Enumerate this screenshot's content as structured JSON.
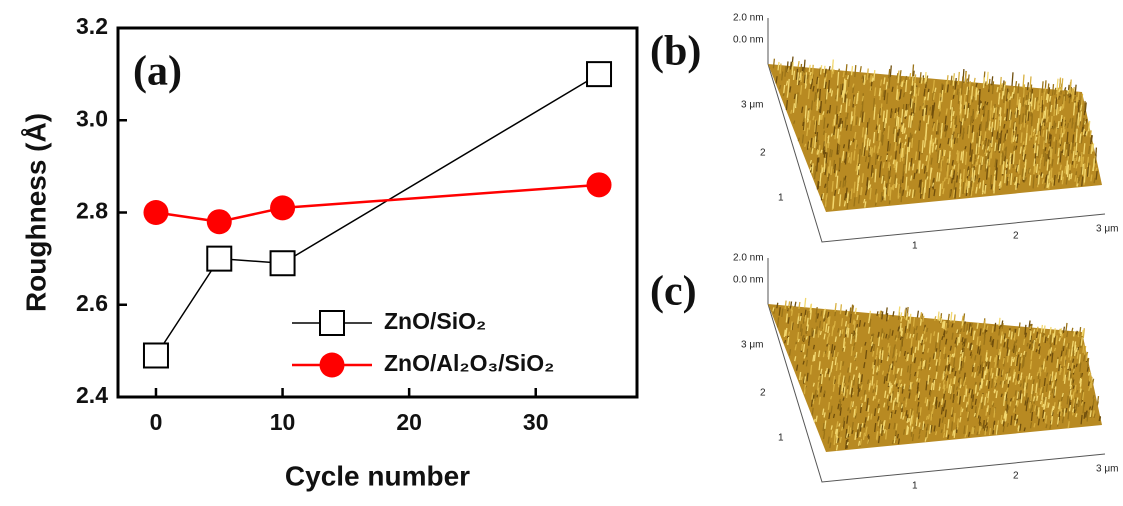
{
  "chart_data": {
    "type": "line",
    "panel_label": "(a)",
    "xlabel": "Cycle number",
    "ylabel": "Roughness (Å)",
    "x": [
      0,
      5,
      10,
      35
    ],
    "series": [
      {
        "name": "ZnO/SiO₂",
        "color": "#000000",
        "marker": "square-open",
        "values": [
          2.49,
          2.7,
          2.69,
          3.1
        ]
      },
      {
        "name": "ZnO/Al₂O₃/SiO₂",
        "color": "#ff0000",
        "marker": "circle",
        "values": [
          2.8,
          2.78,
          2.81,
          2.86
        ]
      }
    ],
    "xlim": [
      -3,
      38
    ],
    "ylim": [
      2.4,
      3.2
    ],
    "xticks": [
      0,
      10,
      20,
      30
    ],
    "yticks": [
      2.4,
      2.6,
      2.8,
      {
        "value": 3,
        "label": "3.0"
      },
      3.2
    ],
    "legend": "lower right"
  },
  "afm_images": [
    {
      "panel_label": "(b)",
      "z_labels": [
        "2.0 nm",
        "0.0 nm"
      ],
      "y_axis_labels": [
        "3 μm",
        "2",
        "1"
      ],
      "x_axis_labels": [
        "1",
        "2",
        "3 μm"
      ]
    },
    {
      "panel_label": "(c)",
      "z_labels": [
        "2.0 nm",
        "0.0 nm"
      ],
      "y_axis_labels": [
        "3 μm",
        "2",
        "1"
      ],
      "x_axis_labels": [
        "1",
        "2",
        "3 μm"
      ]
    }
  ]
}
